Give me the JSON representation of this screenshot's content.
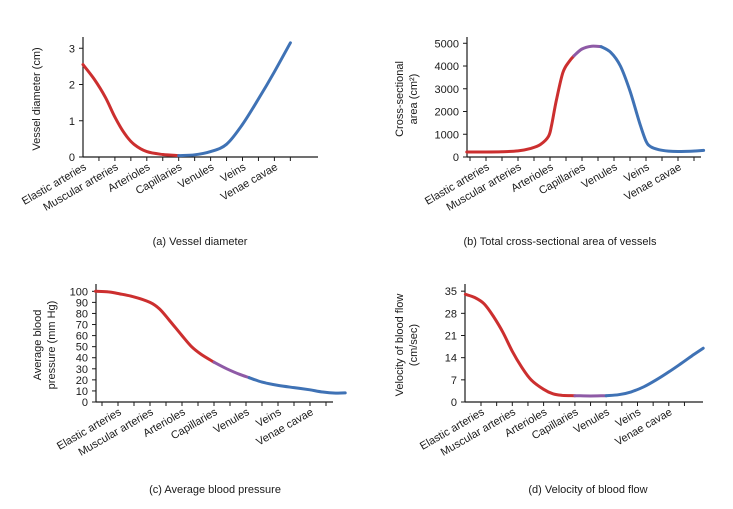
{
  "colors": {
    "arterial": "#cc2f2f",
    "capillary": "#8e5aa6",
    "venous": "#3f72b5",
    "axis": "#1a1a1a"
  },
  "chart_data": [
    {
      "id": "a",
      "type": "line",
      "caption": "(a) Vessel diameter",
      "ylabel_lines": [
        "Vessel diameter (cm)"
      ],
      "yticks": [
        "0",
        "1",
        "2",
        "3"
      ],
      "ylim": [
        0,
        3.2
      ],
      "categories": [
        "Elastic arteries",
        "Muscular arteries",
        "Arterioles",
        "Capillaries",
        "Venules",
        "Veins",
        "Venae cavae"
      ],
      "series": [
        {
          "name": "arterial",
          "color": "arterial",
          "points": [
            [
              0,
              2.55
            ],
            [
              0.35,
              2.15
            ],
            [
              0.7,
              1.65
            ],
            [
              1.0,
              1.1
            ],
            [
              1.3,
              0.65
            ],
            [
              1.6,
              0.35
            ],
            [
              2.0,
              0.15
            ],
            [
              2.5,
              0.07
            ],
            [
              3.0,
              0.04
            ]
          ]
        },
        {
          "name": "venous",
          "color": "venous",
          "points": [
            [
              3.0,
              0.04
            ],
            [
              3.5,
              0.06
            ],
            [
              4.0,
              0.15
            ],
            [
              4.5,
              0.35
            ],
            [
              5.0,
              0.9
            ],
            [
              5.5,
              1.6
            ],
            [
              6.0,
              2.35
            ],
            [
              6.5,
              3.15
            ]
          ]
        }
      ]
    },
    {
      "id": "b",
      "type": "line",
      "caption": "(b) Total cross-sectional area of vessels",
      "ylabel_lines": [
        "Cross-sectional",
        "area (cm²)"
      ],
      "yticks": [
        "0",
        "1000",
        "2000",
        "3000",
        "4000",
        "5000"
      ],
      "ylim": [
        0,
        5100
      ],
      "categories": [
        "Elastic arteries",
        "Muscular arteries",
        "Arterioles",
        "Capillaries",
        "Venules",
        "Veins",
        "Venae cavae"
      ],
      "series": [
        {
          "name": "arterial",
          "color": "arterial",
          "points": [
            [
              -0.6,
              220
            ],
            [
              0,
              220
            ],
            [
              0.5,
              230
            ],
            [
              1.0,
              270
            ],
            [
              1.4,
              380
            ],
            [
              1.7,
              550
            ],
            [
              1.95,
              900
            ],
            [
              2.05,
              1400
            ],
            [
              2.2,
              2500
            ],
            [
              2.4,
              3700
            ],
            [
              2.6,
              4200
            ],
            [
              2.75,
              4450
            ]
          ]
        },
        {
          "name": "capillary",
          "color": "capillary",
          "points": [
            [
              2.75,
              4450
            ],
            [
              3.0,
              4750
            ],
            [
              3.3,
              4870
            ],
            [
              3.6,
              4850
            ]
          ]
        },
        {
          "name": "venous",
          "color": "venous",
          "points": [
            [
              3.6,
              4850
            ],
            [
              3.9,
              4600
            ],
            [
              4.2,
              4000
            ],
            [
              4.5,
              2900
            ],
            [
              4.8,
              1500
            ],
            [
              5.0,
              700
            ],
            [
              5.15,
              450
            ],
            [
              5.4,
              320
            ],
            [
              5.7,
              260
            ],
            [
              6.0,
              240
            ],
            [
              6.4,
              250
            ],
            [
              6.8,
              290
            ]
          ]
        }
      ]
    },
    {
      "id": "c",
      "type": "line",
      "caption": "(c) Average blood pressure",
      "ylabel_lines": [
        "Average blood",
        "pressure (mm Hg)"
      ],
      "yticks": [
        "0",
        "10",
        "20",
        "30",
        "40",
        "50",
        "60",
        "70",
        "80",
        "90",
        "100"
      ],
      "ylim": [
        0,
        103
      ],
      "categories": [
        "Elastic arteries",
        "Muscular arteries",
        "Arterioles",
        "Capillaries",
        "Venules",
        "Veins",
        "Venae cavae"
      ],
      "series": [
        {
          "name": "arterial",
          "color": "arterial",
          "points": [
            [
              -0.7,
              100
            ],
            [
              -0.3,
              99.5
            ],
            [
              0,
              98
            ],
            [
              0.5,
              95
            ],
            [
              1.0,
              90
            ],
            [
              1.3,
              84
            ],
            [
              1.6,
              74
            ],
            [
              2.0,
              60
            ],
            [
              2.3,
              50
            ],
            [
              2.6,
              43
            ],
            [
              3.0,
              36
            ]
          ]
        },
        {
          "name": "capillary",
          "color": "capillary",
          "points": [
            [
              3.0,
              36
            ],
            [
              3.4,
              30
            ],
            [
              3.8,
              25
            ],
            [
              4.1,
              22
            ]
          ]
        },
        {
          "name": "venous",
          "color": "venous",
          "points": [
            [
              4.1,
              22
            ],
            [
              4.5,
              18
            ],
            [
              5.0,
              15
            ],
            [
              5.5,
              13
            ],
            [
              6.0,
              11
            ],
            [
              6.4,
              9
            ],
            [
              6.8,
              8
            ],
            [
              7.1,
              8.2
            ]
          ]
        }
      ]
    },
    {
      "id": "d",
      "type": "line",
      "caption": "(d) Velocity of blood flow",
      "ylabel_lines": [
        "Velocity of blood flow",
        "(cm/sec)"
      ],
      "yticks": [
        "0",
        "7",
        "14",
        "21",
        "28",
        "35"
      ],
      "ylim": [
        0,
        36
      ],
      "categories": [
        "Elastic arteries",
        "Muscular arteries",
        "Arterioles",
        "Capillaries",
        "Venules",
        "Veins",
        "Venae cavae"
      ],
      "series": [
        {
          "name": "arterial",
          "color": "arterial",
          "points": [
            [
              -0.5,
              34
            ],
            [
              -0.2,
              33
            ],
            [
              0.1,
              31
            ],
            [
              0.4,
              27
            ],
            [
              0.7,
              22
            ],
            [
              1.0,
              16
            ],
            [
              1.3,
              11
            ],
            [
              1.6,
              7
            ],
            [
              2.0,
              4
            ],
            [
              2.3,
              2.6
            ],
            [
              2.6,
              2.1
            ],
            [
              3.0,
              2.0
            ]
          ]
        },
        {
          "name": "capillary",
          "color": "capillary",
          "points": [
            [
              3.0,
              2.0
            ],
            [
              3.5,
              1.9
            ],
            [
              4.0,
              2.0
            ]
          ]
        },
        {
          "name": "venous",
          "color": "venous",
          "points": [
            [
              4.0,
              2.0
            ],
            [
              4.4,
              2.3
            ],
            [
              4.8,
              3.2
            ],
            [
              5.2,
              4.8
            ],
            [
              5.6,
              7
            ],
            [
              6.0,
              9.5
            ],
            [
              6.4,
              12.2
            ],
            [
              6.8,
              15
            ],
            [
              7.1,
              17
            ]
          ]
        }
      ]
    }
  ]
}
